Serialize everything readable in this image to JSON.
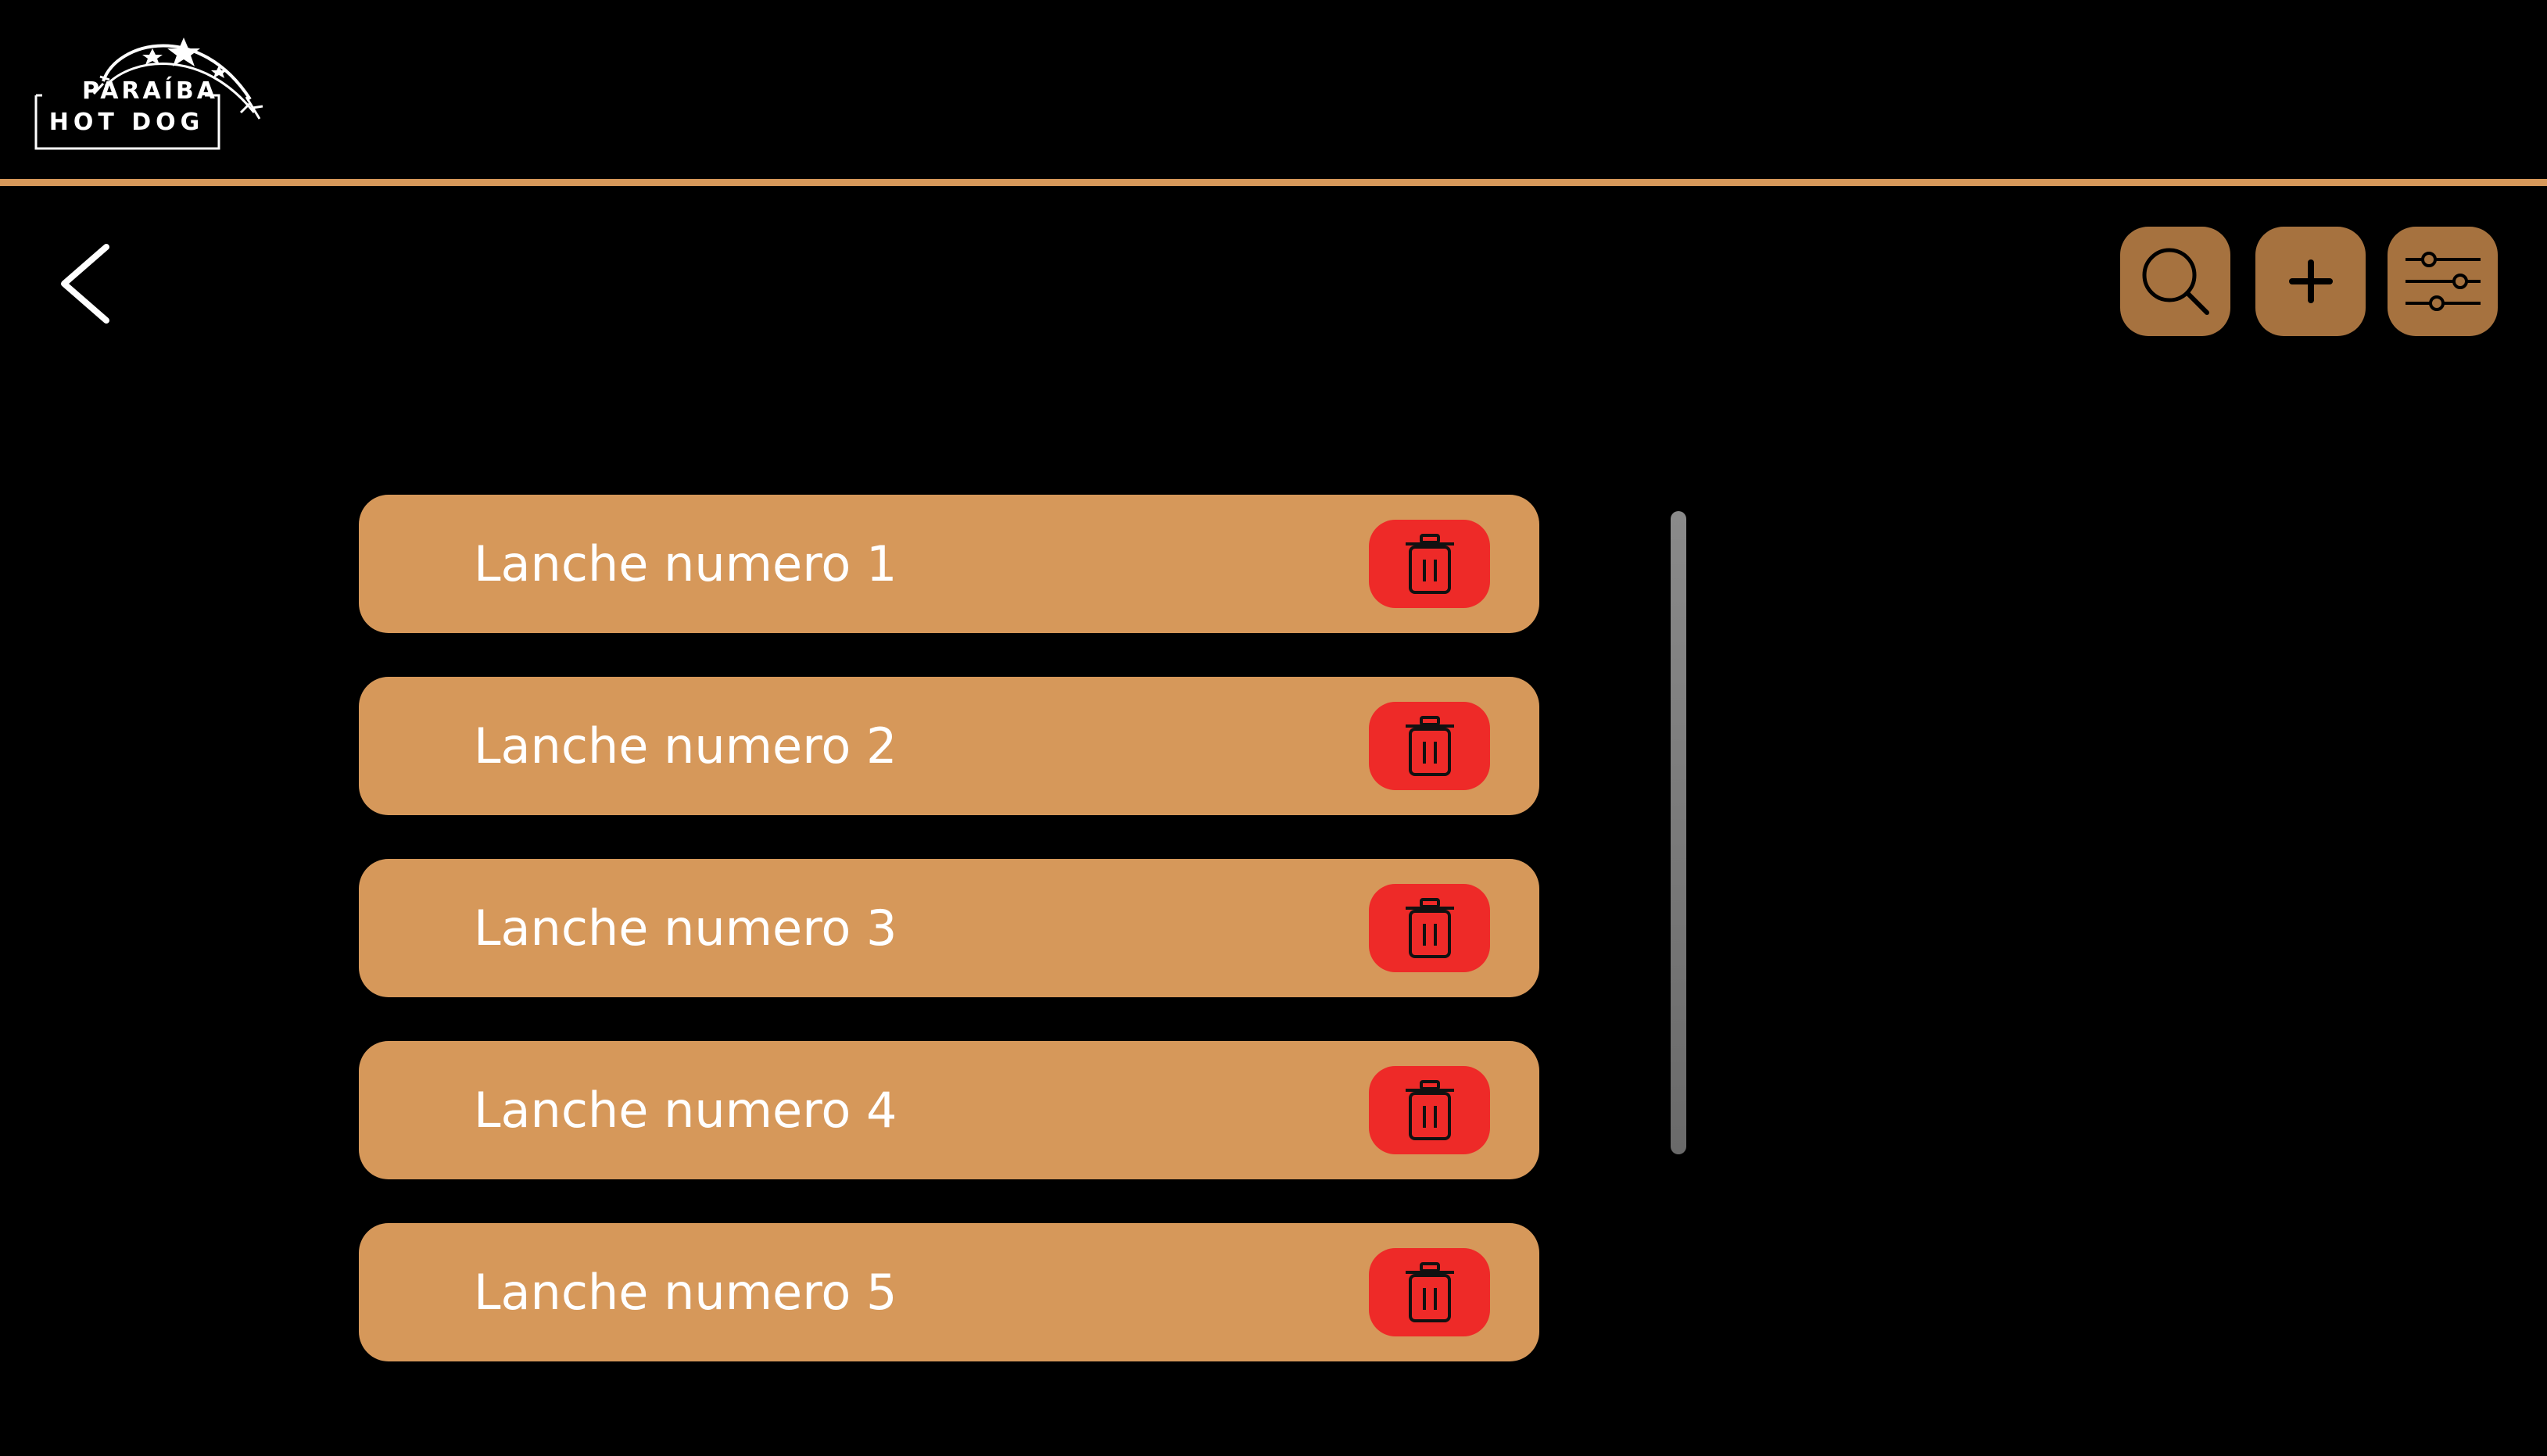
{
  "app": {
    "logo_top": "PARAÍBA",
    "logo_bottom": "HOT DOG"
  },
  "toolbar": {
    "back_icon": "chevron-left-icon",
    "search_icon": "search-icon",
    "add_icon": "plus-icon",
    "filter_icon": "sliders-icon"
  },
  "items": [
    {
      "label": "Lanche numero 1",
      "delete_icon": "trash-icon"
    },
    {
      "label": "Lanche numero 2",
      "delete_icon": "trash-icon"
    },
    {
      "label": "Lanche numero 3",
      "delete_icon": "trash-icon"
    },
    {
      "label": "Lanche numero 4",
      "delete_icon": "trash-icon"
    },
    {
      "label": "Lanche numero 5",
      "delete_icon": "trash-icon"
    }
  ],
  "colors": {
    "background": "#000000",
    "accent": "#D6985A",
    "toolbar_button": "#A6723F",
    "delete_button": "#EE2A28",
    "text": "#FFFFFF"
  }
}
